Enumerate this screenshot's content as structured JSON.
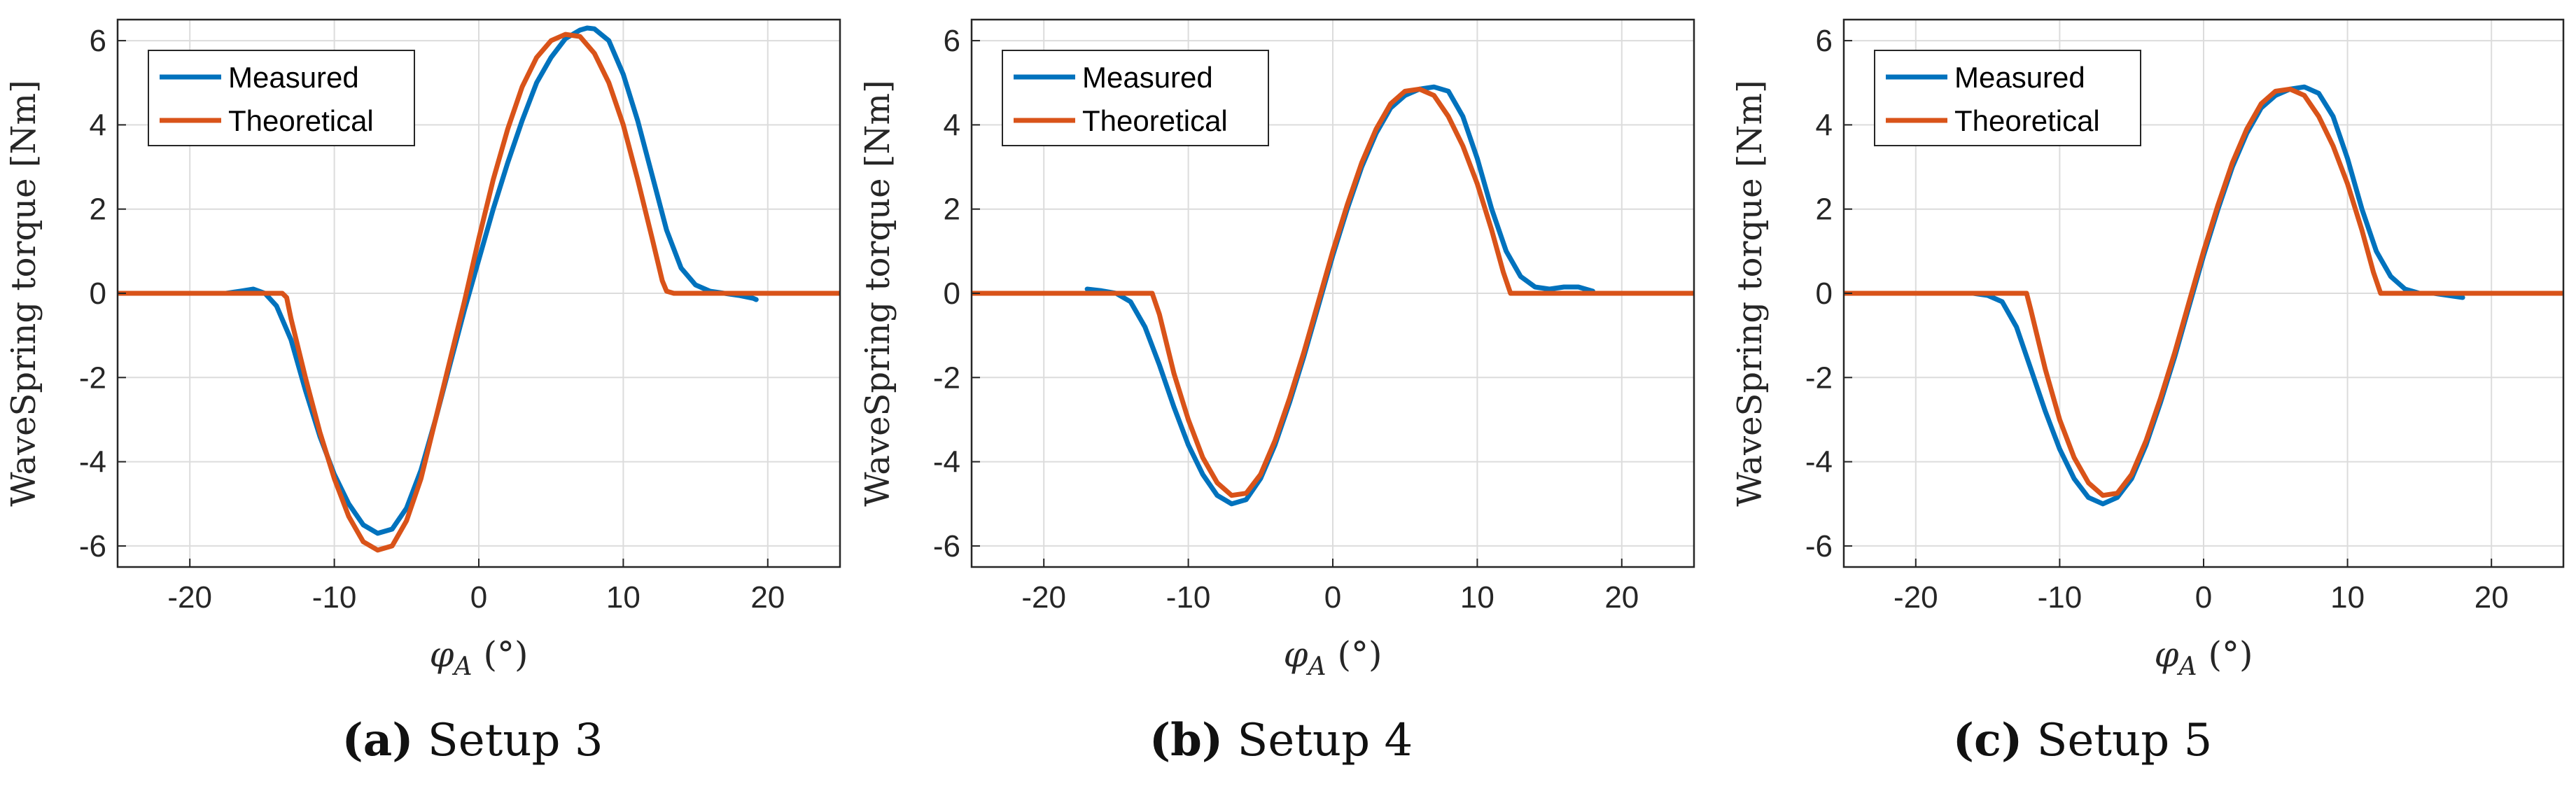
{
  "colors": {
    "measured": "#0072BD",
    "theoretical": "#D95319",
    "grid": "#dcdcdc",
    "axis": "#262626"
  },
  "chart_data": [
    {
      "type": "line",
      "caption_letter": "(a)",
      "caption_text": " Setup 3",
      "xlabel": "φ",
      "xlabel_sub": "A",
      "xlabel_unit": " (°)",
      "ylabel": "WaveSpring torque [Nm]",
      "xlim": [
        -25,
        25
      ],
      "ylim": [
        -6.5,
        6.5
      ],
      "xticks": [
        -20,
        -10,
        0,
        10,
        20
      ],
      "yticks": [
        6,
        4,
        2,
        0,
        -2,
        -4,
        -6
      ],
      "grid": true,
      "legend_position": "top-left",
      "series": [
        {
          "name": "Measured",
          "color": "#0072BD",
          "points": [
            [
              -25,
              0
            ],
            [
              -17.5,
              0
            ],
            [
              -16.5,
              0.05
            ],
            [
              -15.6,
              0.1
            ],
            [
              -14.8,
              0
            ],
            [
              -14,
              -0.3
            ],
            [
              -13,
              -1.1
            ],
            [
              -12,
              -2.3
            ],
            [
              -11,
              -3.4
            ],
            [
              -10,
              -4.3
            ],
            [
              -9,
              -5.0
            ],
            [
              -8,
              -5.5
            ],
            [
              -7,
              -5.7
            ],
            [
              -6,
              -5.6
            ],
            [
              -5,
              -5.1
            ],
            [
              -4,
              -4.2
            ],
            [
              -3,
              -3.0
            ],
            [
              -2,
              -1.7
            ],
            [
              -1,
              -0.4
            ],
            [
              0,
              0.8
            ],
            [
              1,
              2.0
            ],
            [
              2,
              3.1
            ],
            [
              3,
              4.1
            ],
            [
              4,
              5.0
            ],
            [
              5,
              5.6
            ],
            [
              6,
              6.05
            ],
            [
              7,
              6.25
            ],
            [
              7.5,
              6.3
            ],
            [
              8,
              6.28
            ],
            [
              9,
              6.0
            ],
            [
              10,
              5.2
            ],
            [
              11,
              4.1
            ],
            [
              12,
              2.8
            ],
            [
              13,
              1.5
            ],
            [
              14,
              0.6
            ],
            [
              15,
              0.2
            ],
            [
              16,
              0.05
            ],
            [
              17,
              0
            ],
            [
              18,
              -0.05
            ],
            [
              19,
              -0.12
            ],
            [
              19.2,
              -0.15
            ]
          ]
        },
        {
          "name": "Theoretical",
          "color": "#D95319",
          "points": [
            [
              -25,
              0
            ],
            [
              -13.6,
              0
            ],
            [
              -13.3,
              -0.1
            ],
            [
              -13,
              -0.6
            ],
            [
              -12,
              -2.0
            ],
            [
              -11,
              -3.3
            ],
            [
              -10,
              -4.4
            ],
            [
              -9,
              -5.3
            ],
            [
              -8,
              -5.9
            ],
            [
              -7,
              -6.1
            ],
            [
              -6,
              -6.0
            ],
            [
              -5,
              -5.4
            ],
            [
              -4,
              -4.4
            ],
            [
              -3,
              -3.0
            ],
            [
              -2,
              -1.6
            ],
            [
              -1,
              -0.2
            ],
            [
              0,
              1.3
            ],
            [
              1,
              2.7
            ],
            [
              2,
              3.9
            ],
            [
              3,
              4.9
            ],
            [
              4,
              5.6
            ],
            [
              5,
              6.0
            ],
            [
              6,
              6.15
            ],
            [
              7,
              6.1
            ],
            [
              8,
              5.7
            ],
            [
              9,
              5.0
            ],
            [
              10,
              4.0
            ],
            [
              11,
              2.7
            ],
            [
              12,
              1.3
            ],
            [
              12.7,
              0.3
            ],
            [
              13,
              0.05
            ],
            [
              13.5,
              0
            ],
            [
              25,
              0
            ]
          ]
        }
      ]
    },
    {
      "type": "line",
      "caption_letter": "(b)",
      "caption_text": " Setup 4",
      "xlabel": "φ",
      "xlabel_sub": "A",
      "xlabel_unit": " (°)",
      "ylabel": "WaveSpring torque [Nm]",
      "xlim": [
        -25,
        25
      ],
      "ylim": [
        -6.5,
        6.5
      ],
      "xticks": [
        -20,
        -10,
        0,
        10,
        20
      ],
      "yticks": [
        6,
        4,
        2,
        0,
        -2,
        -4,
        -6
      ],
      "grid": true,
      "legend_position": "top-left",
      "series": [
        {
          "name": "Measured",
          "color": "#0072BD",
          "points": [
            [
              -17,
              0.1
            ],
            [
              -16,
              0.06
            ],
            [
              -15,
              0
            ],
            [
              -14,
              -0.2
            ],
            [
              -13,
              -0.8
            ],
            [
              -12,
              -1.7
            ],
            [
              -11,
              -2.7
            ],
            [
              -10,
              -3.6
            ],
            [
              -9,
              -4.3
            ],
            [
              -8,
              -4.8
            ],
            [
              -7,
              -5.0
            ],
            [
              -6,
              -4.9
            ],
            [
              -5,
              -4.4
            ],
            [
              -4,
              -3.6
            ],
            [
              -3,
              -2.6
            ],
            [
              -2,
              -1.5
            ],
            [
              -1,
              -0.3
            ],
            [
              0,
              0.9
            ],
            [
              1,
              2.0
            ],
            [
              2,
              3.0
            ],
            [
              3,
              3.8
            ],
            [
              4,
              4.4
            ],
            [
              5,
              4.7
            ],
            [
              6,
              4.85
            ],
            [
              7,
              4.9
            ],
            [
              8,
              4.8
            ],
            [
              9,
              4.2
            ],
            [
              10,
              3.2
            ],
            [
              11,
              2.0
            ],
            [
              12,
              1.0
            ],
            [
              13,
              0.4
            ],
            [
              14,
              0.15
            ],
            [
              15,
              0.1
            ],
            [
              16,
              0.15
            ],
            [
              17,
              0.15
            ],
            [
              18,
              0.05
            ]
          ]
        },
        {
          "name": "Theoretical",
          "color": "#D95319",
          "points": [
            [
              -25,
              0
            ],
            [
              -12.5,
              0
            ],
            [
              -12,
              -0.5
            ],
            [
              -11,
              -1.9
            ],
            [
              -10,
              -3.0
            ],
            [
              -9,
              -3.9
            ],
            [
              -8,
              -4.5
            ],
            [
              -7,
              -4.8
            ],
            [
              -6,
              -4.75
            ],
            [
              -5,
              -4.3
            ],
            [
              -4,
              -3.5
            ],
            [
              -3,
              -2.5
            ],
            [
              -2,
              -1.4
            ],
            [
              -1,
              -0.2
            ],
            [
              0,
              1.0
            ],
            [
              1,
              2.1
            ],
            [
              2,
              3.1
            ],
            [
              3,
              3.9
            ],
            [
              4,
              4.5
            ],
            [
              5,
              4.8
            ],
            [
              6,
              4.85
            ],
            [
              7,
              4.7
            ],
            [
              8,
              4.2
            ],
            [
              9,
              3.5
            ],
            [
              10,
              2.6
            ],
            [
              11,
              1.5
            ],
            [
              11.8,
              0.5
            ],
            [
              12.3,
              0
            ],
            [
              25,
              0
            ]
          ]
        }
      ]
    },
    {
      "type": "line",
      "caption_letter": "(c)",
      "caption_text": " Setup 5",
      "xlabel": "φ",
      "xlabel_sub": "A",
      "xlabel_unit": " (°)",
      "ylabel": "WaveSpring torque [Nm]",
      "xlim": [
        -25,
        25
      ],
      "ylim": [
        -6.5,
        6.5
      ],
      "xticks": [
        -20,
        -10,
        0,
        10,
        20
      ],
      "yticks": [
        6,
        4,
        2,
        0,
        -2,
        -4,
        -6
      ],
      "grid": true,
      "legend_position": "top-left",
      "series": [
        {
          "name": "Measured",
          "color": "#0072BD",
          "points": [
            [
              -17,
              0
            ],
            [
              -16,
              0
            ],
            [
              -15,
              -0.05
            ],
            [
              -14,
              -0.2
            ],
            [
              -13,
              -0.8
            ],
            [
              -12,
              -1.8
            ],
            [
              -11,
              -2.8
            ],
            [
              -10,
              -3.7
            ],
            [
              -9,
              -4.4
            ],
            [
              -8,
              -4.85
            ],
            [
              -7,
              -5.0
            ],
            [
              -6,
              -4.85
            ],
            [
              -5,
              -4.4
            ],
            [
              -4,
              -3.6
            ],
            [
              -3,
              -2.6
            ],
            [
              -2,
              -1.5
            ],
            [
              -1,
              -0.3
            ],
            [
              0,
              0.9
            ],
            [
              1,
              2.0
            ],
            [
              2,
              3.0
            ],
            [
              3,
              3.8
            ],
            [
              4,
              4.4
            ],
            [
              5,
              4.7
            ],
            [
              6,
              4.85
            ],
            [
              7,
              4.9
            ],
            [
              8,
              4.75
            ],
            [
              9,
              4.2
            ],
            [
              10,
              3.2
            ],
            [
              11,
              2.0
            ],
            [
              12,
              1.0
            ],
            [
              13,
              0.4
            ],
            [
              14,
              0.1
            ],
            [
              15,
              0
            ],
            [
              16,
              0
            ],
            [
              17,
              -0.05
            ],
            [
              18,
              -0.1
            ]
          ]
        },
        {
          "name": "Theoretical",
          "color": "#D95319",
          "points": [
            [
              -25,
              0
            ],
            [
              -12.3,
              0
            ],
            [
              -12,
              -0.4
            ],
            [
              -11,
              -1.8
            ],
            [
              -10,
              -3.0
            ],
            [
              -9,
              -3.9
            ],
            [
              -8,
              -4.5
            ],
            [
              -7,
              -4.8
            ],
            [
              -6,
              -4.75
            ],
            [
              -5,
              -4.3
            ],
            [
              -4,
              -3.5
            ],
            [
              -3,
              -2.5
            ],
            [
              -2,
              -1.4
            ],
            [
              -1,
              -0.2
            ],
            [
              0,
              1.0
            ],
            [
              1,
              2.1
            ],
            [
              2,
              3.1
            ],
            [
              3,
              3.9
            ],
            [
              4,
              4.5
            ],
            [
              5,
              4.8
            ],
            [
              6,
              4.85
            ],
            [
              7,
              4.7
            ],
            [
              8,
              4.2
            ],
            [
              9,
              3.5
            ],
            [
              10,
              2.6
            ],
            [
              11,
              1.5
            ],
            [
              11.8,
              0.5
            ],
            [
              12.3,
              0
            ],
            [
              25,
              0
            ]
          ]
        }
      ]
    }
  ]
}
